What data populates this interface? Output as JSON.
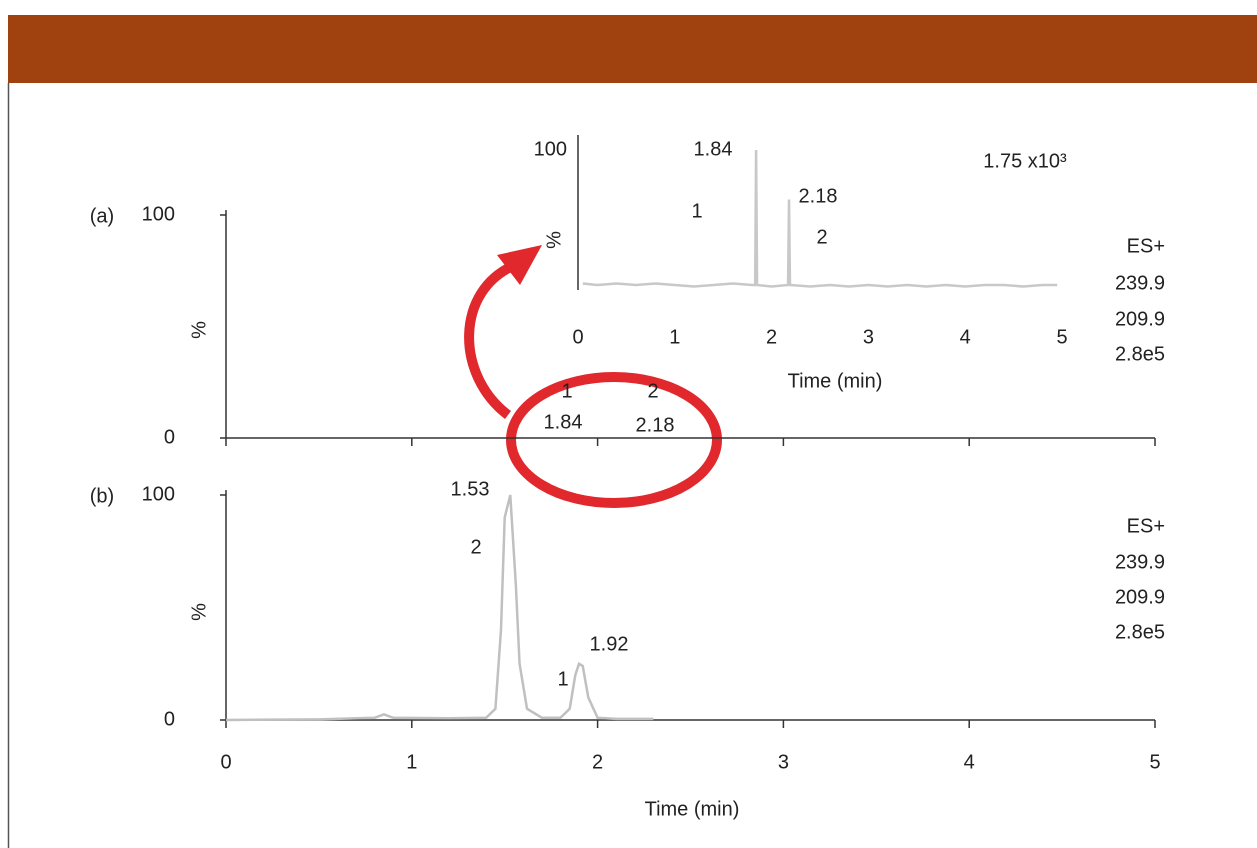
{
  "chart_data": [
    {
      "type": "line",
      "panel_label": "(a)",
      "ylabel": "%",
      "xlim": [
        0,
        5
      ],
      "ylim": [
        0,
        100
      ],
      "yticks": [
        0,
        100
      ],
      "annotations": [
        "1",
        "1.84",
        "2",
        "2.18"
      ],
      "side_labels": [
        "ES+",
        "239.9",
        "209.9",
        "2.8e5"
      ]
    },
    {
      "type": "line",
      "ylabel": "%",
      "xlabel": "Time (min)",
      "xlim": [
        0,
        5
      ],
      "ylim": [
        0,
        100
      ],
      "yticks": [
        100
      ],
      "xticks": [
        0,
        1,
        2,
        3,
        4,
        5
      ],
      "annotations": [
        "1.84",
        "1",
        "2.18",
        "2",
        "1.75 x10³"
      ],
      "series": [
        {
          "color": "#c8c8c8",
          "x": [
            0.05,
            0.2,
            0.4,
            0.6,
            0.8,
            1.0,
            1.2,
            1.4,
            1.6,
            1.8,
            1.83,
            1.84,
            1.85,
            2.0,
            2.17,
            2.18,
            2.19,
            2.4,
            2.6,
            2.8,
            3.0,
            3.2,
            3.4,
            3.6,
            3.8,
            4.0,
            4.2,
            4.4,
            4.6,
            4.8,
            4.95
          ],
          "values": [
            11,
            10,
            11,
            10,
            11,
            10,
            9,
            10,
            11,
            10,
            10,
            100,
            10,
            9,
            10,
            67,
            10,
            9,
            10,
            9,
            10,
            9,
            10,
            9,
            10,
            9,
            10,
            10,
            9,
            10,
            10
          ]
        }
      ]
    },
    {
      "type": "line",
      "panel_label": "(b)",
      "ylabel": "%",
      "xlabel": "Time (min)",
      "xlim": [
        0,
        5
      ],
      "ylim": [
        0,
        100
      ],
      "yticks": [
        0,
        100
      ],
      "xticks": [
        0,
        1,
        2,
        3,
        4,
        5
      ],
      "annotations": [
        "1.53",
        "2",
        "1.92",
        "1"
      ],
      "side_labels": [
        "ES+",
        "239.9",
        "209.9",
        "2.8e5"
      ],
      "series": [
        {
          "color": "#c0c0c0",
          "x": [
            0,
            0.5,
            0.8,
            0.85,
            0.9,
            1.2,
            1.4,
            1.45,
            1.48,
            1.5,
            1.53,
            1.56,
            1.58,
            1.62,
            1.7,
            1.8,
            1.85,
            1.88,
            1.9,
            1.92,
            1.95,
            2.0,
            2.1,
            2.3
          ],
          "values": [
            0,
            0.3,
            1,
            2.5,
            1,
            0.8,
            1,
            5,
            40,
            90,
            100,
            60,
            25,
            5,
            1,
            1,
            5,
            20,
            25,
            24,
            10,
            1,
            0.5,
            0.5
          ]
        }
      ]
    }
  ]
}
